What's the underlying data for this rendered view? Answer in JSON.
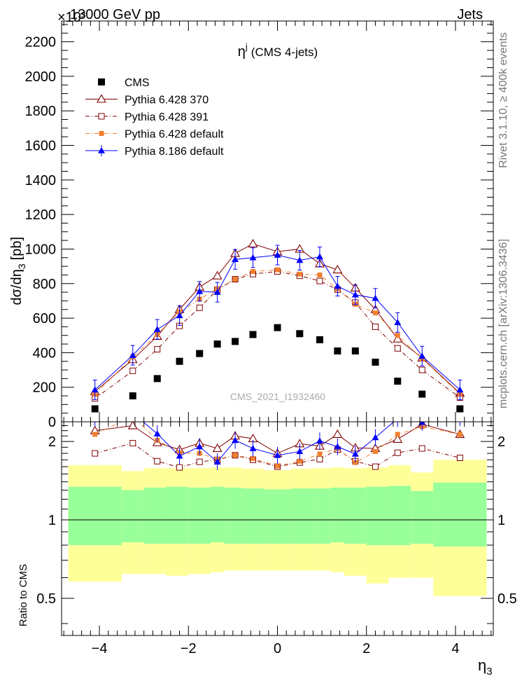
{
  "header": {
    "left_title": "13000 GeV pp",
    "right_title": "Jets",
    "exponent_label": "×10³"
  },
  "side_text": {
    "rivet": "Rivet 3.1.10, ≥ 400k events",
    "mcplots": "mcplots.cern.ch [arXiv:1306.3436]"
  },
  "chart_data": {
    "type": "scatter",
    "title": "η^j (CMS 4-jets)",
    "title_main": "η",
    "title_sup": "j",
    "title_rest": "(CMS 4-jets)",
    "analysis_label": "CMS_2021_I1932460",
    "xlabel": "η",
    "xlabel_sub": "3",
    "ylabel_main": "dσ/dη",
    "ylabel_sub": "3",
    "ylabel_unit": "[pb]",
    "ratio_ylabel": "Ratio to CMS",
    "xlim": [
      -4.85,
      4.85
    ],
    "ylim": [
      0,
      2320
    ],
    "ratio_ylim": [
      0.36,
      2.38
    ],
    "x_ticks": [
      -4,
      -2,
      0,
      2,
      4
    ],
    "x_tick_labels": [
      "−4",
      "−2",
      "0",
      "2",
      "4"
    ],
    "y_ticks": [
      0,
      200,
      400,
      600,
      800,
      1000,
      1200,
      1400,
      1600,
      1800,
      2000,
      2200
    ],
    "y_tick_labels": [
      "0",
      "200",
      "400",
      "600",
      "800",
      "1000",
      "1200",
      "1400",
      "1600",
      "1800",
      "2000",
      "2200"
    ],
    "ratio_ticks": [
      0.5,
      1,
      2
    ],
    "ratio_tick_labels": [
      "0.5",
      "1",
      "2"
    ],
    "legend_position": "top-left",
    "x": [
      -4.1,
      -3.25,
      -2.7,
      -2.2,
      -1.75,
      -1.35,
      -0.95,
      -0.55,
      0,
      0.5,
      0.95,
      1.35,
      1.75,
      2.2,
      2.7,
      3.25,
      4.1
    ],
    "bin_edges": [
      -4.7,
      -3.5,
      -3.0,
      -2.5,
      -2.0,
      -1.5,
      -1.2,
      -0.8,
      -0.3,
      0.3,
      0.8,
      1.2,
      1.5,
      2.0,
      2.5,
      3.0,
      3.5,
      4.7
    ],
    "series": [
      {
        "name": "CMS",
        "color": "#000000",
        "marker": "filled-square",
        "line": "none",
        "values": [
          75,
          150,
          250,
          350,
          395,
          450,
          465,
          505,
          545,
          510,
          475,
          410,
          410,
          345,
          235,
          160,
          75
        ]
      },
      {
        "name": "Pythia 6.428 370",
        "color": "#800000",
        "marker": "open-triangle",
        "line": "solid",
        "values": [
          175,
          360,
          495,
          650,
          780,
          845,
          975,
          1030,
          985,
          1000,
          915,
          880,
          775,
          650,
          480,
          370,
          165
        ]
      },
      {
        "name": "Pythia 6.428 391",
        "color": "#800000",
        "marker": "open-square",
        "line": "dashdot",
        "values": [
          135,
          295,
          420,
          555,
          660,
          765,
          825,
          855,
          870,
          845,
          815,
          765,
          690,
          550,
          425,
          300,
          140
        ]
      },
      {
        "name": "Pythia 6.428 default",
        "color": "#f08030",
        "marker": "filled-square-small",
        "line": "dashdot",
        "values": [
          160,
          375,
          505,
          635,
          710,
          770,
          825,
          870,
          880,
          855,
          850,
          770,
          680,
          630,
          500,
          365,
          160
        ]
      },
      {
        "name": "Pythia 8.186 default",
        "color": "#0000ff",
        "marker": "filled-triangle",
        "line": "solid",
        "values": [
          185,
          385,
          535,
          615,
          755,
          750,
          940,
          950,
          965,
          935,
          955,
          785,
          735,
          715,
          575,
          380,
          185
        ]
      }
    ],
    "ratio_values": [
      [
        2.2,
        2.3,
        1.98,
        1.86,
        1.97,
        1.88,
        2.1,
        2.05,
        1.8,
        1.96,
        1.92,
        2.13,
        1.89,
        1.88,
        2.04,
        2.33,
        2.13
      ],
      [
        1.8,
        1.97,
        1.68,
        1.59,
        1.67,
        1.7,
        1.77,
        1.7,
        1.6,
        1.66,
        1.71,
        1.86,
        1.68,
        1.6,
        1.81,
        1.88,
        1.73
      ],
      [
        2.13,
        2.5,
        2.02,
        1.81,
        1.8,
        1.71,
        1.77,
        1.72,
        1.61,
        1.68,
        1.79,
        1.88,
        1.66,
        1.83,
        2.13,
        2.28,
        2.13
      ],
      [
        2.47,
        2.57,
        2.14,
        1.76,
        1.91,
        1.67,
        2.02,
        1.88,
        1.77,
        1.83,
        2.01,
        1.91,
        1.79,
        2.07,
        2.45,
        2.37,
        2.47
      ]
    ],
    "ratio_band_bins": [
      {
        "outer": [
          0.58,
          1.62
        ],
        "inner": [
          0.8,
          1.34
        ]
      },
      {
        "outer": [
          0.62,
          1.54
        ],
        "inner": [
          0.82,
          1.3
        ]
      },
      {
        "outer": [
          0.62,
          1.58
        ],
        "inner": [
          0.81,
          1.33
        ]
      },
      {
        "outer": [
          0.61,
          1.58
        ],
        "inner": [
          0.81,
          1.34
        ]
      },
      {
        "outer": [
          0.62,
          1.58
        ],
        "inner": [
          0.81,
          1.33
        ]
      },
      {
        "outer": [
          0.63,
          1.59
        ],
        "inner": [
          0.82,
          1.34
        ]
      },
      {
        "outer": [
          0.64,
          1.59
        ],
        "inner": [
          0.81,
          1.33
        ]
      },
      {
        "outer": [
          0.64,
          1.57
        ],
        "inner": [
          0.81,
          1.32
        ]
      },
      {
        "outer": [
          0.64,
          1.55
        ],
        "inner": [
          0.81,
          1.31
        ]
      },
      {
        "outer": [
          0.64,
          1.57
        ],
        "inner": [
          0.81,
          1.32
        ]
      },
      {
        "outer": [
          0.64,
          1.58
        ],
        "inner": [
          0.81,
          1.32
        ]
      },
      {
        "outer": [
          0.63,
          1.59
        ],
        "inner": [
          0.82,
          1.33
        ]
      },
      {
        "outer": [
          0.61,
          1.58
        ],
        "inner": [
          0.81,
          1.33
        ]
      },
      {
        "outer": [
          0.57,
          1.59
        ],
        "inner": [
          0.8,
          1.34
        ]
      },
      {
        "outer": [
          0.6,
          1.62
        ],
        "inner": [
          0.8,
          1.35
        ]
      },
      {
        "outer": [
          0.6,
          1.52
        ],
        "inner": [
          0.81,
          1.29
        ]
      },
      {
        "outer": [
          0.51,
          1.7
        ],
        "inner": [
          0.79,
          1.39
        ]
      }
    ],
    "band_colors": {
      "outer": "#ffff99",
      "inner": "#99ff99"
    }
  }
}
